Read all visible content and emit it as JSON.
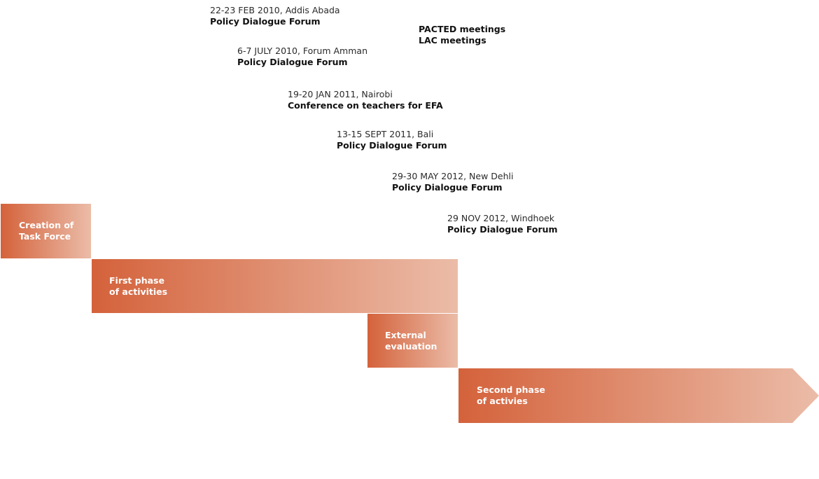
{
  "colors": {
    "phase_gradient_start": "#d4623b",
    "phase_gradient_end": "#ebbca8",
    "phase_label": "#ffffff",
    "text": "#111111"
  },
  "events": [
    {
      "date": "22-23 FEB 2010, Addis Abada",
      "title": "Policy Dialogue Forum"
    },
    {
      "date": "6-7 JULY 2010, Forum Amman",
      "title": "Policy Dialogue Forum"
    },
    {
      "date": "19-20 JAN 2011, Nairobi",
      "title": "Conference on teachers for EFA"
    },
    {
      "date": "13-15 SEPT 2011, Bali",
      "title": "Policy Dialogue Forum"
    },
    {
      "date": "29-30 MAY 2012, New Dehli",
      "title": "Policy Dialogue Forum"
    },
    {
      "date": "29 NOV 2012, Windhoek",
      "title": "Policy Dialogue Forum"
    }
  ],
  "meetings": {
    "line1": "PACTED meetings",
    "line2": "LAC meetings"
  },
  "phases": [
    {
      "label": "Creation of\nTask Force"
    },
    {
      "label": "First phase\nof activities"
    },
    {
      "label": "External\nevaluation"
    },
    {
      "label": "Second phase\nof activies"
    }
  ]
}
